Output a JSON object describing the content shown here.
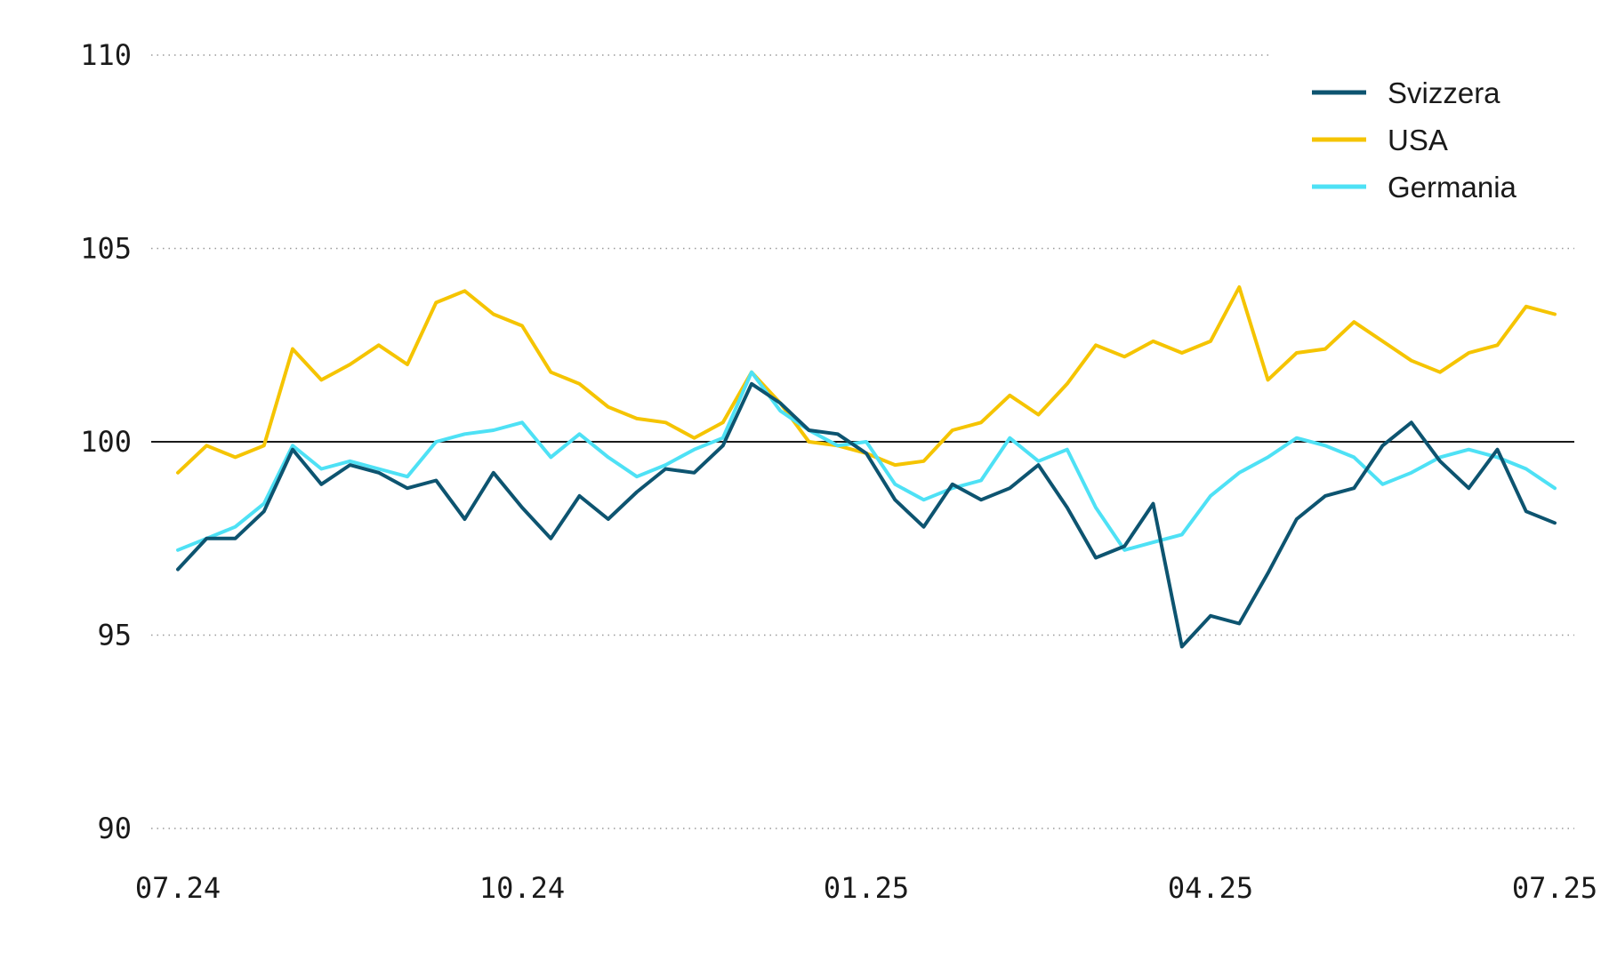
{
  "chart_data": {
    "type": "line",
    "title": "",
    "xlabel": "",
    "ylabel": "",
    "ylim": [
      90,
      110
    ],
    "yticks": [
      "110",
      "105",
      "100",
      "95",
      "90"
    ],
    "ytick_values": [
      110,
      105,
      100,
      95,
      90
    ],
    "x_tick_labels": [
      "07.24",
      "10.24",
      "01.25",
      "04.25",
      "07.25"
    ],
    "x_tick_values": [
      0,
      3,
      6,
      9,
      12
    ],
    "x_unit": "months from 07.24",
    "reference_line": 100,
    "grid": "horizontal dotted",
    "legend_position": "top-right",
    "series": [
      {
        "name": "Svizzera",
        "color": "#0d5470",
        "x": [
          0,
          0.25,
          0.5,
          0.75,
          1,
          1.25,
          1.5,
          1.75,
          2,
          2.25,
          2.5,
          2.75,
          3,
          3.25,
          3.5,
          3.75,
          4,
          4.25,
          4.5,
          4.75,
          5,
          5.25,
          5.5,
          5.75,
          6,
          6.25,
          6.5,
          6.75,
          7,
          7.25,
          7.5,
          7.75,
          8,
          8.25,
          8.5,
          8.75,
          9,
          9.25,
          9.5,
          9.75,
          10,
          10.25,
          10.5,
          10.75,
          11,
          11.25,
          11.5,
          11.75,
          12
        ],
        "values": [
          96.7,
          97.5,
          97.5,
          98.2,
          99.8,
          98.9,
          99.4,
          99.2,
          98.8,
          99.0,
          98.0,
          99.2,
          98.3,
          97.5,
          98.6,
          98.0,
          98.7,
          99.3,
          99.2,
          99.9,
          101.5,
          101.0,
          100.3,
          100.2,
          99.7,
          98.5,
          97.8,
          98.9,
          98.5,
          98.8,
          99.4,
          98.3,
          97.0,
          97.3,
          98.4,
          94.7,
          95.5,
          95.3,
          96.6,
          98.0,
          98.6,
          98.8,
          99.9,
          100.5,
          99.5,
          98.8,
          99.8,
          98.2,
          97.9
        ]
      },
      {
        "name": "USA",
        "color": "#f5c400",
        "x": [
          0,
          0.25,
          0.5,
          0.75,
          1,
          1.25,
          1.5,
          1.75,
          2,
          2.25,
          2.5,
          2.75,
          3,
          3.25,
          3.5,
          3.75,
          4,
          4.25,
          4.5,
          4.75,
          5,
          5.25,
          5.5,
          5.75,
          6,
          6.25,
          6.5,
          6.75,
          7,
          7.25,
          7.5,
          7.75,
          8,
          8.25,
          8.5,
          8.75,
          9,
          9.25,
          9.5,
          9.75,
          10,
          10.25,
          10.5,
          10.75,
          11,
          11.25,
          11.5,
          11.75,
          12
        ],
        "values": [
          99.2,
          99.9,
          99.6,
          99.9,
          102.4,
          101.6,
          102.0,
          102.5,
          102.0,
          103.6,
          103.9,
          103.3,
          103.0,
          101.8,
          101.5,
          100.9,
          100.6,
          100.5,
          100.1,
          100.5,
          101.8,
          101.0,
          100.0,
          99.9,
          99.7,
          99.4,
          99.5,
          100.3,
          100.5,
          101.2,
          100.7,
          101.5,
          102.5,
          102.2,
          102.6,
          102.3,
          102.6,
          104.0,
          101.6,
          102.3,
          102.4,
          103.1,
          102.6,
          102.1,
          101.8,
          102.3,
          102.5,
          103.5,
          103.3
        ]
      },
      {
        "name": "Germania",
        "color": "#4ee1f5",
        "x": [
          0,
          0.25,
          0.5,
          0.75,
          1,
          1.25,
          1.5,
          1.75,
          2,
          2.25,
          2.5,
          2.75,
          3,
          3.25,
          3.5,
          3.75,
          4,
          4.25,
          4.5,
          4.75,
          5,
          5.25,
          5.5,
          5.75,
          6,
          6.25,
          6.5,
          6.75,
          7,
          7.25,
          7.5,
          7.75,
          8,
          8.25,
          8.5,
          8.75,
          9,
          9.25,
          9.5,
          9.75,
          10,
          10.25,
          10.5,
          10.75,
          11,
          11.25,
          11.5,
          11.75,
          12
        ],
        "values": [
          97.2,
          97.5,
          97.8,
          98.4,
          99.9,
          99.3,
          99.5,
          99.3,
          99.1,
          100.0,
          100.2,
          100.3,
          100.5,
          99.6,
          100.2,
          99.6,
          99.1,
          99.4,
          99.8,
          100.1,
          101.8,
          100.8,
          100.3,
          99.9,
          100.0,
          98.9,
          98.5,
          98.8,
          99.0,
          100.1,
          99.5,
          99.8,
          98.3,
          97.2,
          97.4,
          97.6,
          98.6,
          99.2,
          99.6,
          100.1,
          99.9,
          99.6,
          98.9,
          99.2,
          99.6,
          99.8,
          99.6,
          99.3,
          98.8
        ]
      }
    ]
  }
}
